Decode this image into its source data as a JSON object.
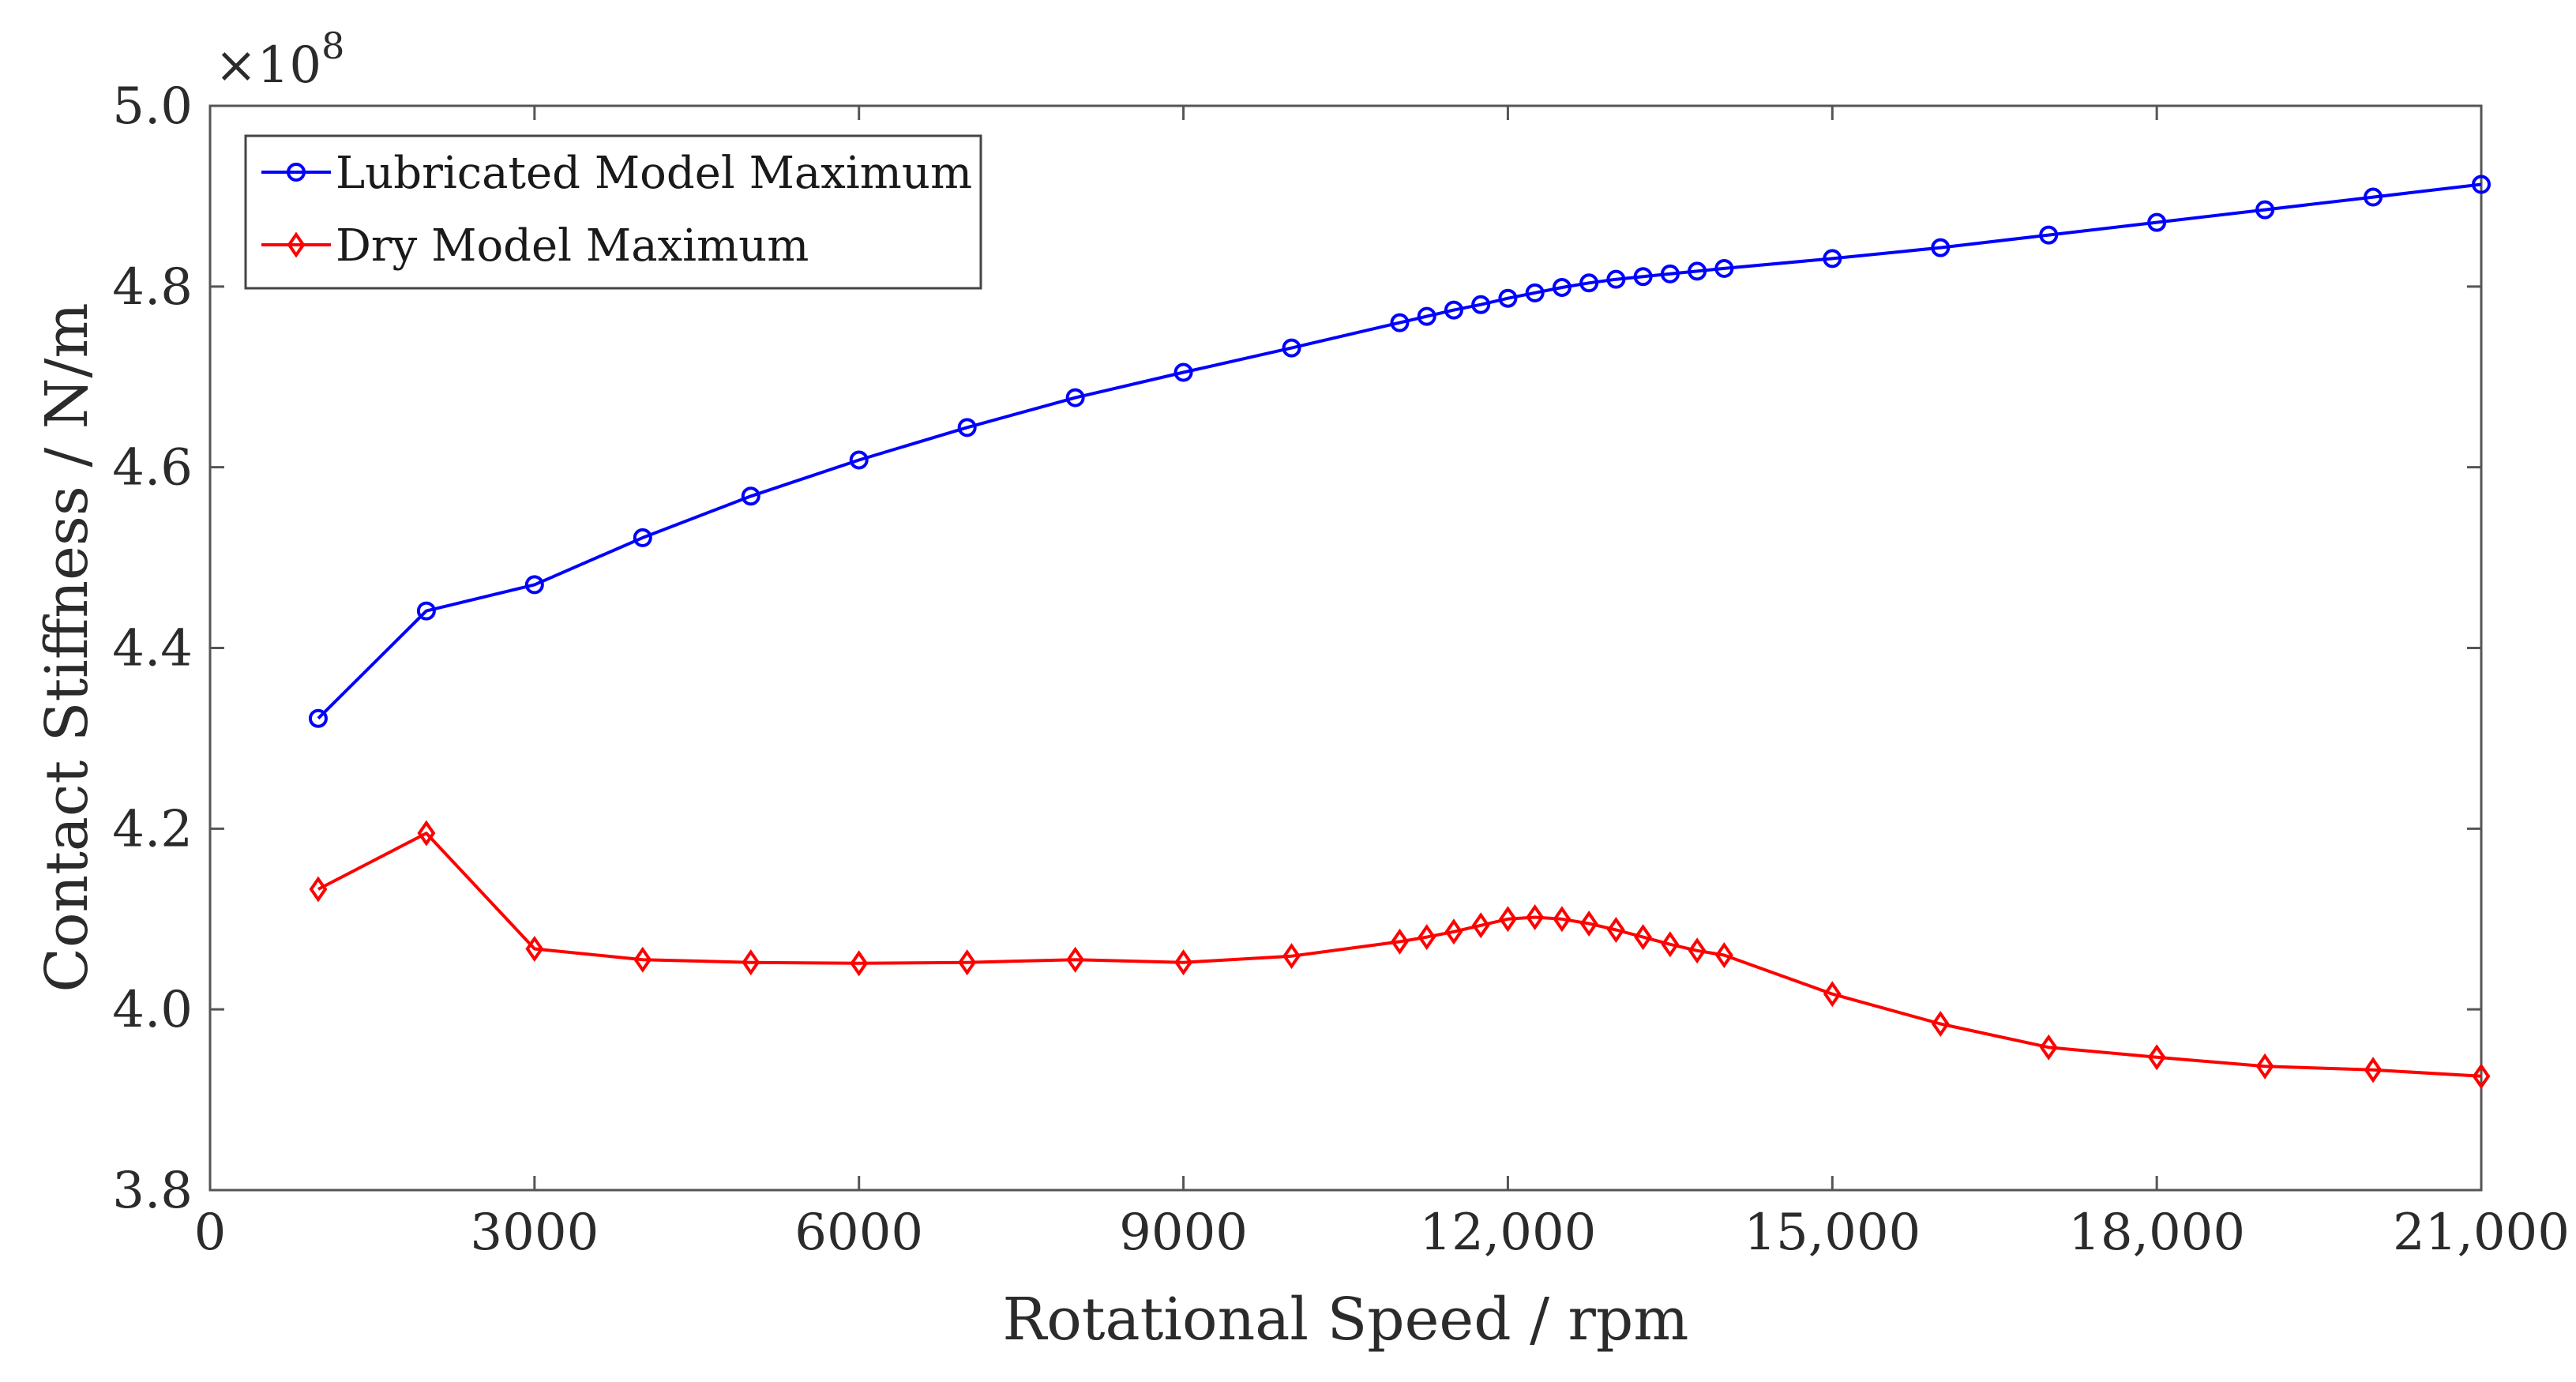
{
  "chart_data": {
    "type": "line",
    "title": "",
    "xlabel": "Rotational Speed / rpm",
    "ylabel": "Contact Stiffness / N/m",
    "y_multiplier_label": "×10",
    "y_multiplier_exponent": "8",
    "xlim": [
      0,
      21000
    ],
    "ylim": [
      3.8,
      5.0
    ],
    "x_ticks": [
      0,
      3000,
      6000,
      9000,
      12000,
      15000,
      18000,
      21000
    ],
    "x_tick_labels": [
      "0",
      "3000",
      "6000",
      "9000",
      "12,000",
      "15,000",
      "18,000",
      "21,000"
    ],
    "y_ticks": [
      3.8,
      4.0,
      4.2,
      4.4,
      4.6,
      4.8,
      5.0
    ],
    "y_tick_labels": [
      "3.8",
      "4.0",
      "4.2",
      "4.4",
      "4.6",
      "4.8",
      "5.0"
    ],
    "grid": false,
    "legend_position": "top-left",
    "series": [
      {
        "name": "Lubricated Model Maximum",
        "color": "#0000ff",
        "marker": "circle",
        "x": [
          1000,
          2000,
          3000,
          4000,
          5000,
          6000,
          7000,
          8000,
          9000,
          10000,
          11000,
          11250,
          11500,
          11750,
          12000,
          12250,
          12500,
          12750,
          13000,
          13250,
          13500,
          13750,
          14000,
          15000,
          16000,
          17000,
          18000,
          19000,
          20000,
          21000
        ],
        "values": [
          4.322,
          4.441,
          4.47,
          4.522,
          4.568,
          4.608,
          4.644,
          4.677,
          4.705,
          4.732,
          4.76,
          4.767,
          4.774,
          4.78,
          4.787,
          4.793,
          4.799,
          4.804,
          4.808,
          4.811,
          4.814,
          4.817,
          4.82,
          4.831,
          4.843,
          4.857,
          4.871,
          4.885,
          4.899,
          4.913
        ]
      },
      {
        "name": "Dry Model Maximum",
        "color": "#ff0000",
        "marker": "diamond",
        "x": [
          1000,
          2000,
          3000,
          4000,
          5000,
          6000,
          7000,
          8000,
          9000,
          10000,
          11000,
          11250,
          11500,
          11750,
          12000,
          12250,
          12500,
          12750,
          13000,
          13250,
          13500,
          13750,
          14000,
          15000,
          16000,
          17000,
          18000,
          19000,
          20000,
          21000
        ],
        "values": [
          4.133,
          4.195,
          4.067,
          4.055,
          4.052,
          4.051,
          4.052,
          4.055,
          4.052,
          4.059,
          4.075,
          4.08,
          4.086,
          4.093,
          4.1,
          4.102,
          4.1,
          4.095,
          4.088,
          4.08,
          4.072,
          4.065,
          4.06,
          4.017,
          3.984,
          3.958,
          3.947,
          3.937,
          3.933,
          3.926
        ]
      }
    ]
  }
}
